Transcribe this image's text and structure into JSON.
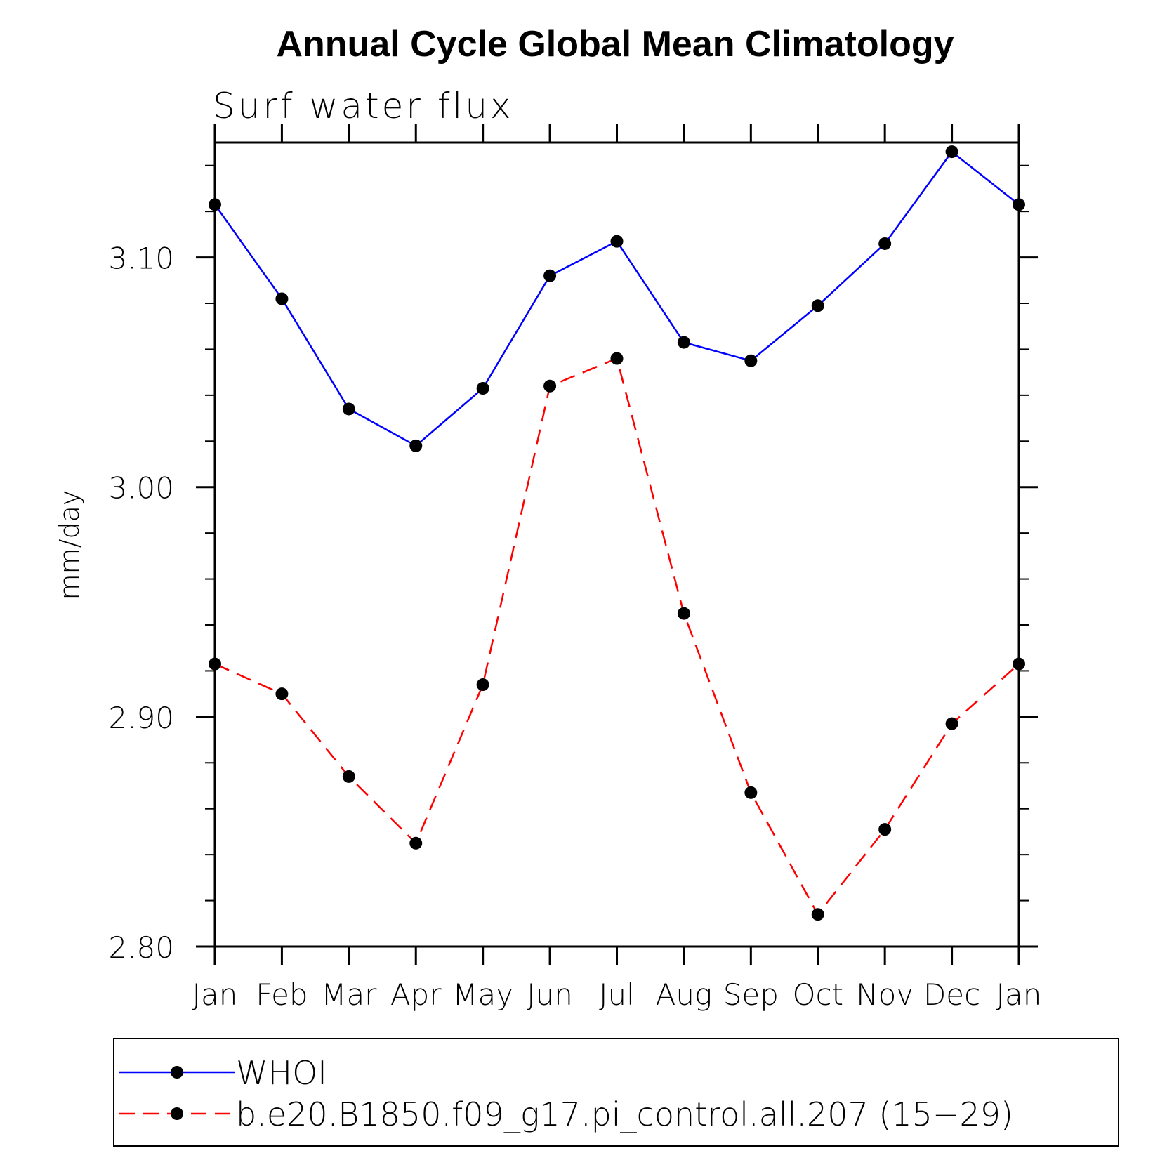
{
  "chart_data": {
    "type": "line",
    "title": "Annual Cycle Global Mean Climatology",
    "subtitle": "Surf water flux",
    "ylabel": "mm/day",
    "xlabel": "",
    "categories": [
      "Jan",
      "Feb",
      "Mar",
      "Apr",
      "May",
      "Jun",
      "Jul",
      "Aug",
      "Sep",
      "Oct",
      "Nov",
      "Dec",
      "Jan"
    ],
    "ylim": [
      2.8,
      3.15
    ],
    "yticks": [
      "2.80",
      "2.90",
      "3.00",
      "3.10"
    ],
    "grid": false,
    "legend_position": "bottom",
    "series": [
      {
        "name": "WHOI",
        "color": "#0000ff",
        "line_style": "solid",
        "marker": "filled-circle",
        "values": [
          3.123,
          3.082,
          3.034,
          3.018,
          3.043,
          3.092,
          3.107,
          3.063,
          3.055,
          3.079,
          3.106,
          3.146,
          3.123
        ]
      },
      {
        "name": "b.e20.B1850.f09_g17.pi_control.all.207 (15−29)",
        "color": "#ff0000",
        "line_style": "dashed",
        "marker": "filled-circle",
        "values": [
          2.923,
          2.91,
          2.874,
          2.845,
          2.914,
          3.044,
          3.056,
          2.945,
          2.867,
          2.814,
          2.851,
          2.897,
          2.923
        ]
      }
    ]
  }
}
